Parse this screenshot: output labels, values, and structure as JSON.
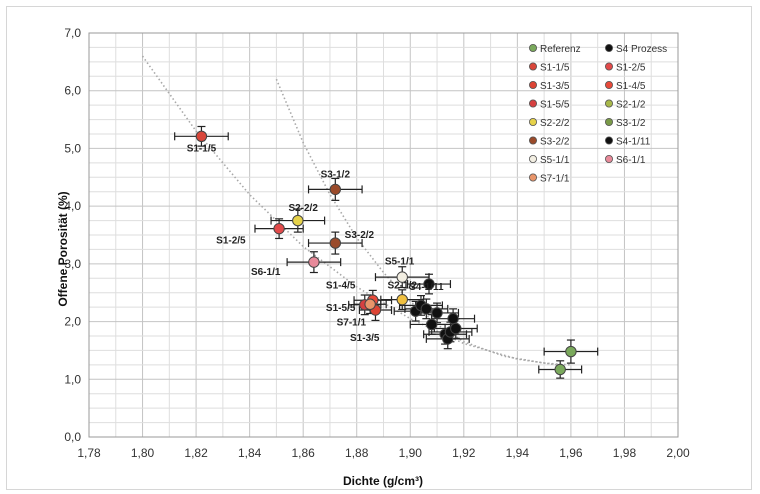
{
  "chart_data": {
    "type": "scatter",
    "title": "",
    "xlabel": "Dichte (g/cm³)",
    "ylabel": "Offene Porosität (%)",
    "xlim": [
      1.78,
      2.0
    ],
    "ylim": [
      0.0,
      7.0
    ],
    "x_ticks": [
      "1,78",
      "1,80",
      "1,82",
      "1,84",
      "1,86",
      "1,88",
      "1,90",
      "1,92",
      "1,94",
      "1,96",
      "1,98",
      "2,00"
    ],
    "y_ticks": [
      "0,0",
      "1,0",
      "2,0",
      "3,0",
      "4,0",
      "5,0",
      "6,0",
      "7,0"
    ],
    "grid": true,
    "legend_position": "top-right",
    "legend": [
      {
        "label": "Referenz",
        "color": "#7aa95c"
      },
      {
        "label": "S4 Prozess",
        "color": "#111111"
      },
      {
        "label": "S1-1/5",
        "color": "#d9463a"
      },
      {
        "label": "S1-2/5",
        "color": "#e24a4a"
      },
      {
        "label": "S1-3/5",
        "color": "#dc4434"
      },
      {
        "label": "S1-4/5",
        "color": "#e84a3a"
      },
      {
        "label": "S1-5/5",
        "color": "#d64040"
      },
      {
        "label": "S2-1/2",
        "color": "#a8b84a"
      },
      {
        "label": "S2-2/2",
        "color": "#e6d24a"
      },
      {
        "label": "S3-1/2",
        "color": "#7a9a48"
      },
      {
        "label": "S3-2/2",
        "color": "#9a4a2a"
      },
      {
        "label": "S4-1/11",
        "color": "#111111"
      },
      {
        "label": "S5-1/1",
        "color": "#f2eee2"
      },
      {
        "label": "S6-1/1",
        "color": "#e88a9a"
      },
      {
        "label": "S7-1/1",
        "color": "#e8956a"
      }
    ],
    "series": [
      {
        "name": "Referenz",
        "color": "#7aa95c",
        "points": [
          {
            "x": 1.956,
            "y": 1.17,
            "xerr": 0.008,
            "yerr": 0.15
          },
          {
            "x": 1.96,
            "y": 1.48,
            "xerr": 0.01,
            "yerr": 0.2
          }
        ]
      },
      {
        "name": "S1-1/5",
        "color": "#d9463a",
        "points": [
          {
            "x": 1.822,
            "y": 5.21,
            "xerr": 0.01,
            "yerr": 0.17
          }
        ],
        "label": "S1-1/5"
      },
      {
        "name": "S1-2/5",
        "color": "#e24a4a",
        "points": [
          {
            "x": 1.851,
            "y": 3.61,
            "xerr": 0.009,
            "yerr": 0.17
          }
        ],
        "label": "S1-2/5"
      },
      {
        "name": "S1-3/5",
        "color": "#dc4434",
        "points": [
          {
            "x": 1.887,
            "y": 2.2,
            "xerr": 0.006,
            "yerr": 0.18
          }
        ],
        "label": "S1-3/5"
      },
      {
        "name": "S1-4/5",
        "color": "#e84a3a",
        "points": [
          {
            "x": 1.886,
            "y": 2.37,
            "xerr": 0.007,
            "yerr": 0.17
          }
        ],
        "label": "S1-4/5"
      },
      {
        "name": "S1-5/5",
        "color": "#d64040",
        "points": [
          {
            "x": 1.883,
            "y": 2.29,
            "xerr": 0.006,
            "yerr": 0.17
          }
        ],
        "label": "S1-5/5"
      },
      {
        "name": "S2-2/2",
        "color": "#e6d24a",
        "points": [
          {
            "x": 1.858,
            "y": 3.75,
            "xerr": 0.01,
            "yerr": 0.2
          }
        ],
        "label": "S2-2/2"
      },
      {
        "name": "S2-1/2",
        "color": "#f0c040",
        "points": [
          {
            "x": 1.897,
            "y": 2.38,
            "xerr": 0.008,
            "yerr": 0.17
          }
        ],
        "label": "S2-1/2"
      },
      {
        "name": "S3-1/2",
        "color": "#9a4a2a",
        "points": [
          {
            "x": 1.872,
            "y": 4.29,
            "xerr": 0.01,
            "yerr": 0.19
          }
        ],
        "label": "S3-1/2"
      },
      {
        "name": "S3-2/2",
        "color": "#9a4a2a",
        "points": [
          {
            "x": 1.872,
            "y": 3.36,
            "xerr": 0.01,
            "yerr": 0.19
          }
        ],
        "label": "S3-2/2"
      },
      {
        "name": "S4-1/11",
        "color": "#111111",
        "points": [
          {
            "x": 1.902,
            "y": 2.18,
            "xerr": 0.008,
            "yerr": 0.17
          },
          {
            "x": 1.904,
            "y": 2.28,
            "xerr": 0.008,
            "yerr": 0.17
          },
          {
            "x": 1.906,
            "y": 2.22,
            "xerr": 0.008,
            "yerr": 0.17
          },
          {
            "x": 1.907,
            "y": 2.65,
            "xerr": 0.008,
            "yerr": 0.17
          },
          {
            "x": 1.908,
            "y": 1.95,
            "xerr": 0.008,
            "yerr": 0.17
          },
          {
            "x": 1.91,
            "y": 2.15,
            "xerr": 0.008,
            "yerr": 0.17
          },
          {
            "x": 1.913,
            "y": 1.78,
            "xerr": 0.008,
            "yerr": 0.17
          },
          {
            "x": 1.914,
            "y": 1.7,
            "xerr": 0.008,
            "yerr": 0.17
          },
          {
            "x": 1.915,
            "y": 1.82,
            "xerr": 0.008,
            "yerr": 0.17
          },
          {
            "x": 1.916,
            "y": 2.05,
            "xerr": 0.008,
            "yerr": 0.17
          },
          {
            "x": 1.917,
            "y": 1.88,
            "xerr": 0.008,
            "yerr": 0.17
          }
        ],
        "label": "S4-1/11"
      },
      {
        "name": "S5-1/1",
        "color": "#f2eee2",
        "points": [
          {
            "x": 1.897,
            "y": 2.77,
            "xerr": 0.01,
            "yerr": 0.18
          }
        ],
        "label": "S5-1/1"
      },
      {
        "name": "S6-1/1",
        "color": "#e88a9a",
        "points": [
          {
            "x": 1.864,
            "y": 3.03,
            "xerr": 0.01,
            "yerr": 0.18
          }
        ],
        "label": "S6-1/1"
      },
      {
        "name": "S7-1/1",
        "color": "#e8956a",
        "points": [
          {
            "x": 1.885,
            "y": 2.3,
            "xerr": 0.006,
            "yerr": 0.16
          }
        ],
        "label": "S7-1/1"
      }
    ],
    "trend_lines": [
      {
        "points": [
          {
            "x": 1.8,
            "y": 6.6
          },
          {
            "x": 1.82,
            "y": 5.3
          },
          {
            "x": 1.84,
            "y": 4.2
          },
          {
            "x": 1.86,
            "y": 3.3
          },
          {
            "x": 1.88,
            "y": 2.6
          },
          {
            "x": 1.9,
            "y": 2.05
          },
          {
            "x": 1.92,
            "y": 1.62
          },
          {
            "x": 1.94,
            "y": 1.35
          },
          {
            "x": 1.955,
            "y": 1.25
          }
        ]
      },
      {
        "points": [
          {
            "x": 1.85,
            "y": 6.2
          },
          {
            "x": 1.86,
            "y": 5.1
          },
          {
            "x": 1.87,
            "y": 4.2
          },
          {
            "x": 1.88,
            "y": 3.45
          },
          {
            "x": 1.89,
            "y": 2.85
          },
          {
            "x": 1.9,
            "y": 2.35
          },
          {
            "x": 1.91,
            "y": 1.95
          },
          {
            "x": 1.92,
            "y": 1.65
          },
          {
            "x": 1.935,
            "y": 1.4
          },
          {
            "x": 1.95,
            "y": 1.28
          },
          {
            "x": 1.96,
            "y": 1.25
          }
        ]
      }
    ],
    "labels": [
      {
        "text": "S1-1/5",
        "x": 1.822,
        "y": 4.95,
        "color": "#222222"
      },
      {
        "text": "S1-2/5",
        "x": 1.833,
        "y": 3.35,
        "color": "#222222"
      },
      {
        "text": "S2-2/2",
        "x": 1.86,
        "y": 3.92,
        "color": "#222222"
      },
      {
        "text": "S3-1/2",
        "x": 1.872,
        "y": 4.5,
        "color": "#222222"
      },
      {
        "text": "S3-2/2",
        "x": 1.881,
        "y": 3.45,
        "color": "#222222"
      },
      {
        "text": "S6-1/1",
        "x": 1.846,
        "y": 2.81,
        "color": "#222222"
      },
      {
        "text": "S5-1/1",
        "x": 1.896,
        "y": 2.99,
        "color": "#222222"
      },
      {
        "text": "S4-1/11",
        "x": 1.906,
        "y": 2.55,
        "color": "#222222"
      },
      {
        "text": "S1-4/5",
        "x": 1.874,
        "y": 2.57,
        "color": "#222222"
      },
      {
        "text": "S2-1/2",
        "x": 1.897,
        "y": 2.57,
        "color": "#222222"
      },
      {
        "text": "S1-5/5",
        "x": 1.874,
        "y": 2.18,
        "color": "#222222"
      },
      {
        "text": "S7-1/1",
        "x": 1.878,
        "y": 1.93,
        "color": "#e8a060"
      },
      {
        "text": "S1-3/5",
        "x": 1.883,
        "y": 1.66,
        "color": "#e24a4a"
      }
    ]
  }
}
